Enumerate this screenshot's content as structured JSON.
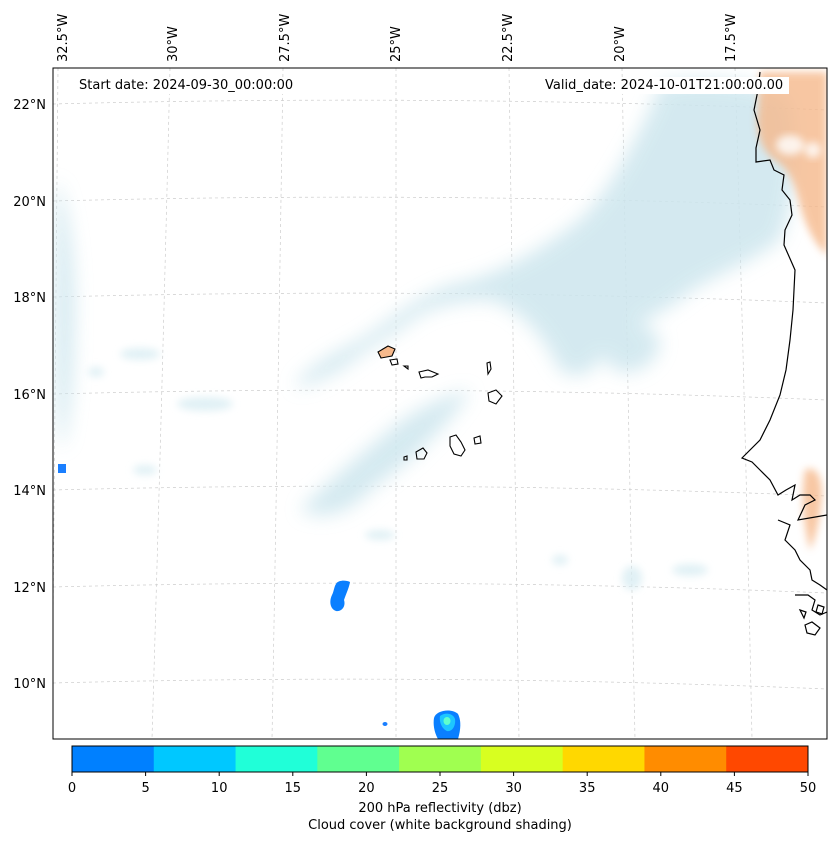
{
  "start_date": "Start date: 2024-09-30_00:00:00",
  "valid_date": "Valid_date: 2024-10-01T21:00:00.00",
  "lon_labels": [
    "32.5°W",
    "30°W",
    "27.5°W",
    "25°W",
    "22.5°W",
    "20°W",
    "17.5°W"
  ],
  "lat_labels": [
    "22°N",
    "20°N",
    "18°N",
    "16°N",
    "14°N",
    "12°N",
    "10°N"
  ],
  "colorbar": {
    "title": "200 hPa reflectivity (dbz)",
    "subtitle": "Cloud cover (white background shading)",
    "ticks": [
      "0",
      "5",
      "10",
      "15",
      "20",
      "25",
      "30",
      "35",
      "40",
      "45",
      "50"
    ],
    "colors": [
      "#0080ff",
      "#00c8ff",
      "#20ffd8",
      "#60ff90",
      "#a0ff50",
      "#d8ff20",
      "#ffd800",
      "#ff8c00",
      "#ff4800"
    ]
  },
  "colors": {
    "cloud": "#cde6ee",
    "warm": "#f6b98c",
    "cell_blue": "#0a7fff",
    "cell_cyan": "#1dc6ff",
    "coast": "#000000"
  }
}
